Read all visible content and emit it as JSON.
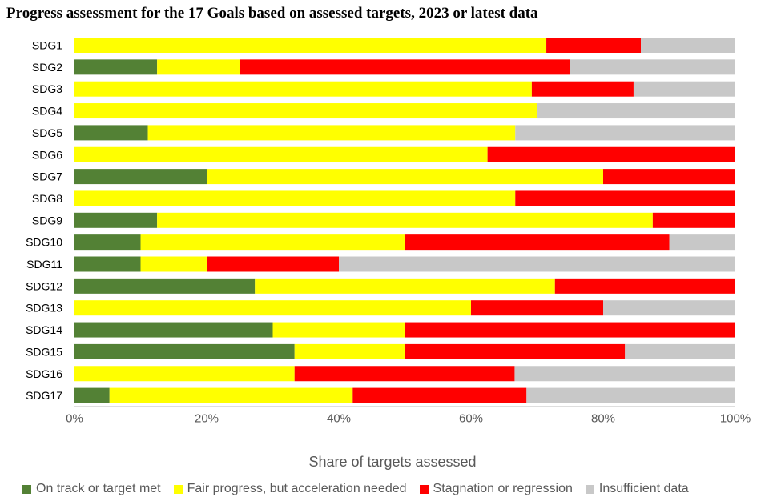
{
  "chart_data": {
    "type": "bar",
    "orientation": "horizontal",
    "stacked": true,
    "title": "Progress assessment for the 17 Goals based on assessed targets, 2023 or latest data",
    "xlabel": "Share of targets assessed",
    "ylabel": "",
    "xlim": [
      0,
      100
    ],
    "x_ticks": [
      "0%",
      "20%",
      "40%",
      "60%",
      "80%",
      "100%"
    ],
    "legend_position": "bottom",
    "categories": [
      "SDG1",
      "SDG2",
      "SDG3",
      "SDG4",
      "SDG5",
      "SDG6",
      "SDG7",
      "SDG8",
      "SDG9",
      "SDG10",
      "SDG11",
      "SDG12",
      "SDG13",
      "SDG14",
      "SDG15",
      "SDG16",
      "SDG17"
    ],
    "series": [
      {
        "name": "On track or target met",
        "color": "#538135",
        "values": [
          0,
          12.5,
          0,
          0,
          11.1,
          0,
          20,
          0,
          12.5,
          10,
          10,
          27.3,
          0,
          30,
          33.3,
          0,
          5.3
        ]
      },
      {
        "name": "Fair progress, but acceleration needed",
        "color": "#ffff00",
        "values": [
          71.4,
          12.5,
          69.2,
          70,
          55.6,
          62.5,
          60,
          66.7,
          75,
          40,
          10,
          45.4,
          60,
          20,
          16.7,
          33.3,
          36.8
        ]
      },
      {
        "name": "Stagnation or regression",
        "color": "#ff0000",
        "values": [
          14.3,
          50,
          15.4,
          0,
          0,
          37.5,
          20,
          33.3,
          12.5,
          40,
          20,
          27.3,
          20,
          50,
          33.3,
          33.3,
          26.3
        ]
      },
      {
        "name": "Insufficient data",
        "color": "#c8c8c8",
        "values": [
          14.3,
          25,
          15.4,
          30,
          33.3,
          0,
          0,
          0,
          0,
          10,
          60,
          0,
          20,
          0,
          16.7,
          33.4,
          31.6
        ]
      }
    ]
  }
}
